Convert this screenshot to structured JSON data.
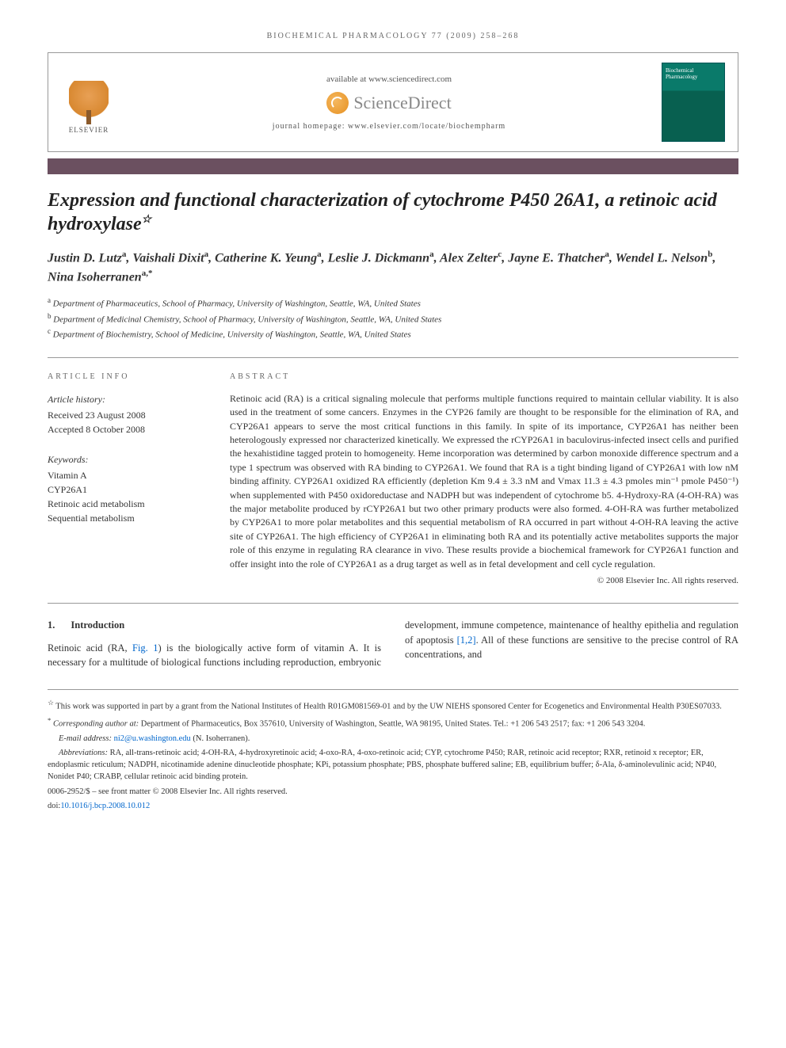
{
  "running_head": "BIOCHEMICAL PHARMACOLOGY 77 (2009) 258–268",
  "masthead": {
    "available": "available at www.sciencedirect.com",
    "sd_brand": "ScienceDirect",
    "homepage": "journal homepage: www.elsevier.com/locate/biochempharm",
    "elsevier": "ELSEVIER",
    "cover_title": "Biochemical Pharmacology"
  },
  "color_bar": "#6b5060",
  "title": "Expression and functional characterization of cytochrome P450 26A1, a retinoic acid hydroxylase",
  "title_star": "☆",
  "authors_html": "Justin D. Lutz|a|, Vaishali Dixit|a|, Catherine K. Yeung|a|, Leslie J. Dickmann|a|, Alex Zelter|c|, Jayne E. Thatcher|a|, Wendel L. Nelson|b|, Nina Isoherranen|a,*|",
  "affiliations": [
    {
      "sup": "a",
      "text": "Department of Pharmaceutics, School of Pharmacy, University of Washington, Seattle, WA, United States"
    },
    {
      "sup": "b",
      "text": "Department of Medicinal Chemistry, School of Pharmacy, University of Washington, Seattle, WA, United States"
    },
    {
      "sup": "c",
      "text": "Department of Biochemistry, School of Medicine, University of Washington, Seattle, WA, United States"
    }
  ],
  "info": {
    "label_info": "ARTICLE INFO",
    "label_abs": "ABSTRACT",
    "history_hdr": "Article history:",
    "received": "Received 23 August 2008",
    "accepted": "Accepted 8 October 2008",
    "keywords_hdr": "Keywords:",
    "keywords": [
      "Vitamin A",
      "CYP26A1",
      "Retinoic acid metabolism",
      "Sequential metabolism"
    ]
  },
  "abstract": "Retinoic acid (RA) is a critical signaling molecule that performs multiple functions required to maintain cellular viability. It is also used in the treatment of some cancers. Enzymes in the CYP26 family are thought to be responsible for the elimination of RA, and CYP26A1 appears to serve the most critical functions in this family. In spite of its importance, CYP26A1 has neither been heterologously expressed nor characterized kinetically. We expressed the rCYP26A1 in baculovirus-infected insect cells and purified the hexahistidine tagged protein to homogeneity. Heme incorporation was determined by carbon monoxide difference spectrum and a type 1 spectrum was observed with RA binding to CYP26A1. We found that RA is a tight binding ligand of CYP26A1 with low nM binding affinity. CYP26A1 oxidized RA efficiently (depletion Km 9.4 ± 3.3 nM and Vmax 11.3 ± 4.3 pmoles min⁻¹ pmole P450⁻¹) when supplemented with P450 oxidoreductase and NADPH but was independent of cytochrome b5. 4-Hydroxy-RA (4-OH-RA) was the major metabolite produced by rCYP26A1 but two other primary products were also formed. 4-OH-RA was further metabolized by CYP26A1 to more polar metabolites and this sequential metabolism of RA occurred in part without 4-OH-RA leaving the active site of CYP26A1. The high efficiency of CYP26A1 in eliminating both RA and its potentially active metabolites supports the major role of this enzyme in regulating RA clearance in vivo. These results provide a biochemical framework for CYP26A1 function and offer insight into the role of CYP26A1 as a drug target as well as in fetal development and cell cycle regulation.",
  "copyright": "© 2008 Elsevier Inc. All rights reserved.",
  "intro": {
    "num": "1.",
    "heading": "Introduction",
    "p1a": "Retinoic acid (RA, ",
    "fig_link": "Fig. 1",
    "p1b": ") is the biologically active form of vitamin A. It is necessary for a multitude of biological",
    "p2a": "functions including reproduction, embryonic development, immune competence, maintenance of healthy epithelia and regulation of apoptosis ",
    "ref_link": "[1,2]",
    "p2b": ". All of these functions are sensitive to the precise control of RA concentrations, and"
  },
  "footnotes": {
    "funding_star": "☆",
    "funding": "This work was supported in part by a grant from the National Institutes of Health R01GM081569-01 and by the UW NIEHS sponsored Center for Ecogenetics and Environmental Health P30ES07033.",
    "corr_star": "*",
    "corr_label": "Corresponding author at:",
    "corr": " Department of Pharmaceutics, Box 357610, University of Washington, Seattle, WA 98195, United States. Tel.: +1 206 543 2517; fax: +1 206 543 3204.",
    "email_label": "E-mail address: ",
    "email": "ni2@u.washington.edu",
    "email_name": " (N. Isoherranen).",
    "abbrev_label": "Abbreviations:",
    "abbrev": " RA, all-trans-retinoic acid; 4-OH-RA, 4-hydroxyretinoic acid; 4-oxo-RA, 4-oxo-retinoic acid; CYP, cytochrome P450; RAR, retinoic acid receptor; RXR, retinoid x receptor; ER, endoplasmic reticulum; NADPH, nicotinamide adenine dinucleotide phosphate; KPi, potassium phosphate; PBS, phosphate buffered saline; EB, equilibrium buffer; δ-Ala, δ-aminolevulinic acid; NP40, Nonidet P40; CRABP, cellular retinoic acid binding protein.",
    "issn": "0006-2952/$ – see front matter © 2008 Elsevier Inc. All rights reserved.",
    "doi_label": "doi:",
    "doi": "10.1016/j.bcp.2008.10.012"
  },
  "colors": {
    "bar": "#6b5060",
    "link": "#0066cc",
    "cover": "#0a7a6a",
    "elsevier": "#e8a055"
  }
}
